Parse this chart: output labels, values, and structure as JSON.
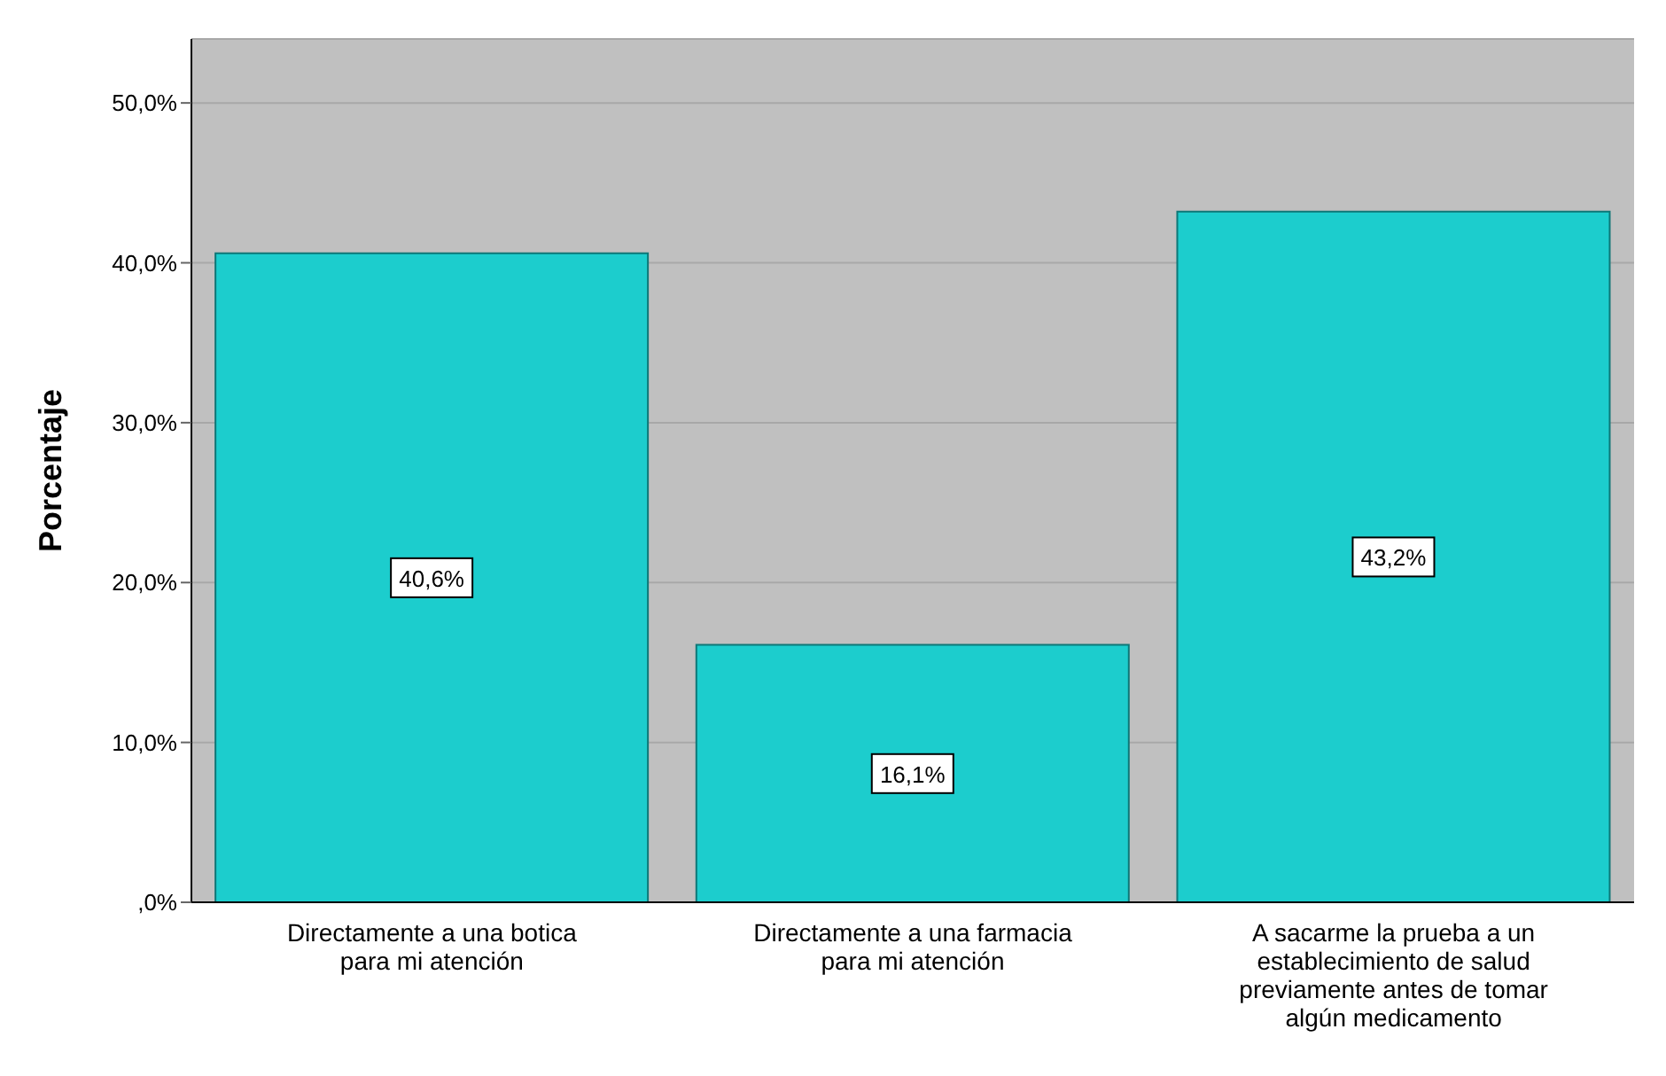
{
  "chart_data": {
    "type": "bar",
    "ylabel": "Porcentaje",
    "categories": [
      "Directamente a una botica para mi atención",
      "Directamente a una farmacia para mi atención",
      "A sacarme la prueba a un establecimiento de salud previamente antes de tomar algún medicamento"
    ],
    "values": [
      40.6,
      16.1,
      43.2
    ],
    "value_labels": [
      "40,6%",
      "16,1%",
      "43,2%"
    ],
    "color": "#1ccdcd",
    "ylim": [
      0,
      54
    ],
    "yticks": [
      {
        "value": 0,
        "label": ",0%"
      },
      {
        "value": 10,
        "label": "10,0%"
      },
      {
        "value": 20,
        "label": "20,0%"
      },
      {
        "value": 30,
        "label": "30,0%"
      },
      {
        "value": 40,
        "label": "40,0%"
      },
      {
        "value": 50,
        "label": "50,0%"
      }
    ],
    "grid": "y",
    "legend": false
  }
}
